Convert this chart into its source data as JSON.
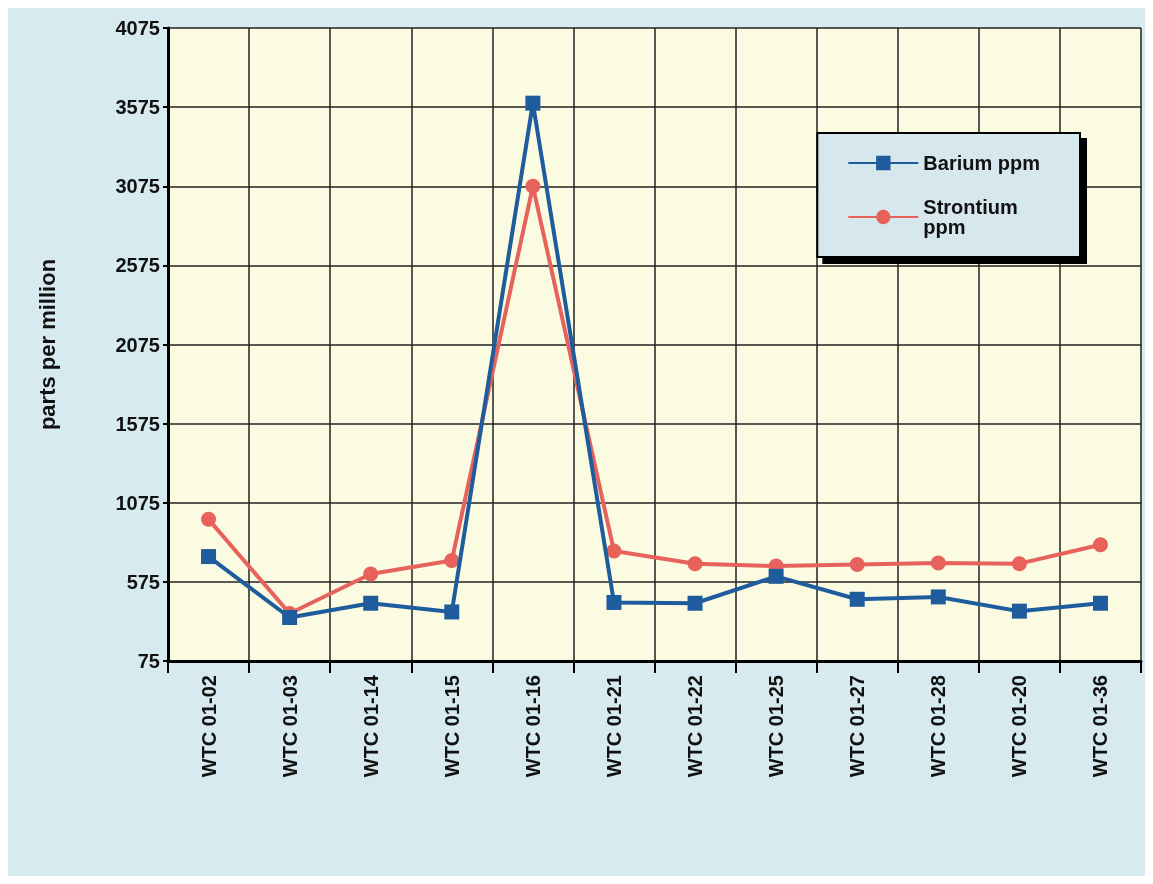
{
  "chart_data": {
    "type": "line",
    "ylabel": "parts per million",
    "categories": [
      "WTC 01-02",
      "WTC 01-03",
      "WTC 01-14",
      "WTC 01-15",
      "WTC 01-16",
      "WTC 01-21",
      "WTC 01-22",
      "WTC 01-25",
      "WTC 01-27",
      "WTC 01-28",
      "WTC 01-20",
      "WTC 01-36"
    ],
    "series": [
      {
        "name": "Barium ppm",
        "color": "#1f5c9e",
        "marker": "square",
        "values": [
          735,
          350,
          440,
          385,
          3600,
          445,
          440,
          610,
          465,
          480,
          390,
          440
        ]
      },
      {
        "name": "Strontium ppm",
        "color": "#e8625c",
        "marker": "circle",
        "values": [
          970,
          375,
          625,
          710,
          3075,
          770,
          690,
          675,
          685,
          695,
          690,
          810
        ]
      }
    ],
    "ylim": [
      75,
      4075
    ],
    "yticks": [
      75,
      575,
      1075,
      1575,
      2075,
      2575,
      3075,
      3575,
      4075
    ],
    "grid": true,
    "legend": "top right",
    "line_style": "solid"
  }
}
